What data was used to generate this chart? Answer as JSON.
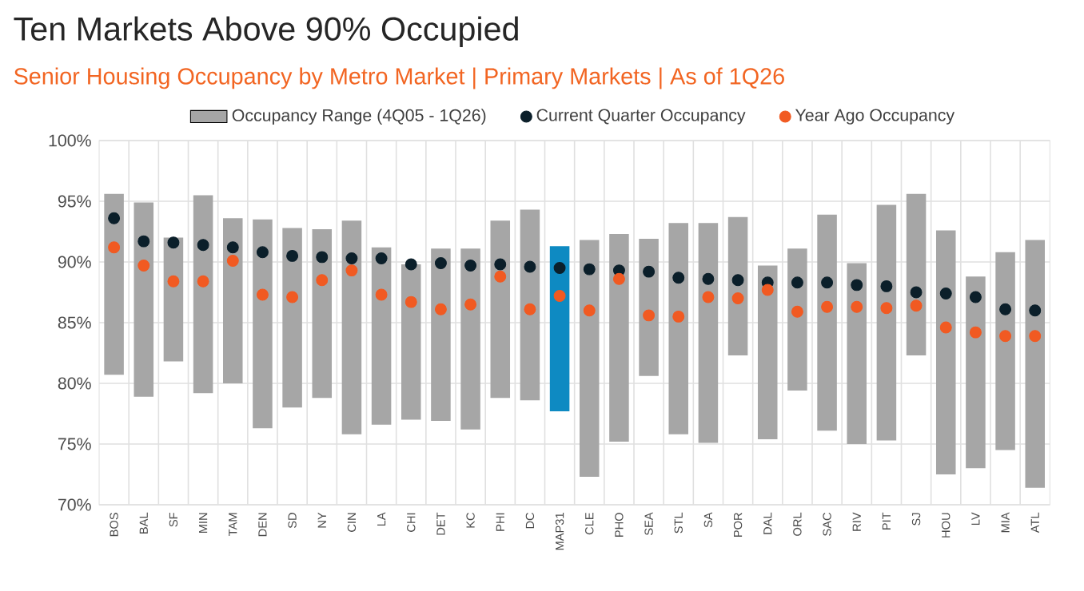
{
  "chart_data": {
    "type": "bar",
    "title": "Ten Markets Above 90% Occupied",
    "subtitle": "Senior Housing Occupancy by Metro Market | Primary Markets | As of 1Q26",
    "categories": [
      "BOS",
      "BAL",
      "SF",
      "MIN",
      "TAM",
      "DEN",
      "SD",
      "NY",
      "CIN",
      "LA",
      "CHI",
      "DET",
      "KC",
      "PHI",
      "DC",
      "MAP31",
      "CLE",
      "PHO",
      "SEA",
      "STL",
      "SA",
      "POR",
      "DAL",
      "ORL",
      "SAC",
      "RIV",
      "PIT",
      "SJ",
      "HOU",
      "LV",
      "MIA",
      "ATL"
    ],
    "series": [
      {
        "name": "Occupancy Range (4Q05 - 1Q26)",
        "colors": [
          "#a6a6a6",
          "#a6a6a6",
          "#a6a6a6",
          "#a6a6a6",
          "#a6a6a6",
          "#a6a6a6",
          "#a6a6a6",
          "#a6a6a6",
          "#a6a6a6",
          "#a6a6a6",
          "#a6a6a6",
          "#a6a6a6",
          "#a6a6a6",
          "#a6a6a6",
          "#a6a6a6",
          "#0e8ac2",
          "#a6a6a6",
          "#a6a6a6",
          "#a6a6a6",
          "#a6a6a6",
          "#a6a6a6",
          "#a6a6a6",
          "#a6a6a6",
          "#a6a6a6",
          "#a6a6a6",
          "#a6a6a6",
          "#a6a6a6",
          "#a6a6a6",
          "#a6a6a6",
          "#a6a6a6",
          "#a6a6a6",
          "#a6a6a6"
        ],
        "base": [
          80.7,
          78.9,
          81.8,
          79.2,
          80.0,
          76.3,
          78.0,
          78.8,
          75.8,
          76.6,
          77.0,
          76.9,
          76.2,
          78.8,
          78.6,
          77.7,
          72.3,
          75.2,
          80.6,
          75.8,
          75.1,
          82.3,
          75.4,
          79.4,
          76.1,
          75.0,
          75.3,
          82.3,
          72.5,
          73.0,
          74.5,
          71.4
        ],
        "values": [
          14.9,
          16.0,
          10.2,
          16.3,
          13.6,
          17.2,
          14.8,
          13.9,
          17.6,
          14.6,
          12.8,
          14.2,
          14.9,
          14.6,
          15.7,
          13.6,
          19.5,
          17.1,
          11.3,
          17.4,
          18.1,
          11.4,
          14.3,
          11.7,
          17.8,
          14.9,
          19.4,
          13.3,
          20.1,
          15.8,
          16.3,
          20.4
        ]
      },
      {
        "name": "Current Quarter Occupancy",
        "type": "scatter",
        "color": "#0b1f2a",
        "values": [
          93.6,
          91.7,
          91.6,
          91.4,
          91.2,
          90.8,
          90.5,
          90.4,
          90.3,
          90.3,
          89.8,
          89.9,
          89.7,
          89.8,
          89.6,
          89.5,
          89.4,
          89.3,
          89.2,
          88.7,
          88.6,
          88.5,
          88.3,
          88.3,
          88.3,
          88.1,
          88.0,
          87.5,
          87.4,
          87.1,
          86.1,
          86.0
        ]
      },
      {
        "name": "Year Ago Occupancy",
        "type": "scatter",
        "color": "#f15a22",
        "values": [
          91.2,
          89.7,
          88.4,
          88.4,
          90.1,
          87.3,
          87.1,
          88.5,
          89.3,
          87.3,
          86.7,
          86.1,
          86.5,
          88.8,
          86.1,
          87.2,
          86.0,
          88.6,
          85.6,
          85.5,
          87.1,
          87.0,
          87.7,
          85.9,
          86.3,
          86.3,
          86.2,
          86.4,
          84.6,
          84.2,
          83.9,
          83.9
        ]
      }
    ],
    "ylim": [
      70,
      100
    ],
    "yticks": [
      {
        "value": 70,
        "label": "70%"
      },
      {
        "value": 75,
        "label": "75%"
      },
      {
        "value": 80,
        "label": "80%"
      },
      {
        "value": 85,
        "label": "85%"
      },
      {
        "value": 90,
        "label": "90%"
      },
      {
        "value": 95,
        "label": "95%"
      },
      {
        "value": 100,
        "label": "100%"
      }
    ],
    "grid": true,
    "legend": "top",
    "marker": "circle"
  }
}
